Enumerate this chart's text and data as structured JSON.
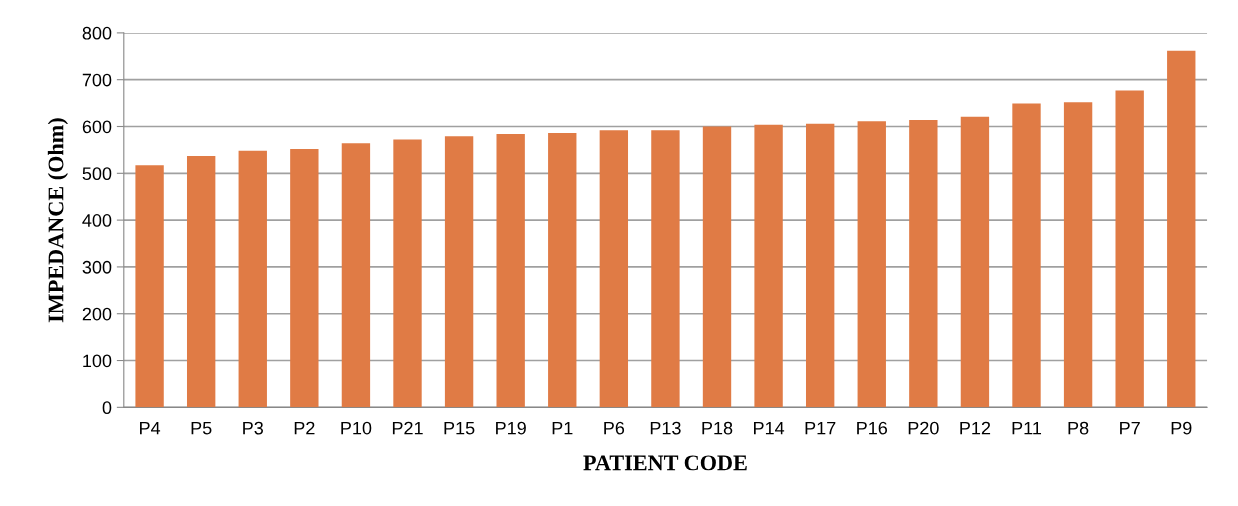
{
  "chart_data": {
    "type": "bar",
    "xlabel": "PATIENT CODE",
    "ylabel": "IMPEDANCE (Ohm)",
    "categories": [
      "P4",
      "P5",
      "P3",
      "P2",
      "P10",
      "P21",
      "P15",
      "P19",
      "P1",
      "P6",
      "P13",
      "P18",
      "P14",
      "P17",
      "P16",
      "P20",
      "P12",
      "P11",
      "P8",
      "P7",
      "P9"
    ],
    "values": [
      517,
      537,
      548,
      552,
      564,
      572,
      579,
      584,
      586,
      592,
      592,
      600,
      604,
      606,
      611,
      614,
      621,
      649,
      652,
      677,
      762
    ],
    "color": "#e07b45",
    "ylim": [
      0,
      800
    ],
    "yticks": [
      0,
      100,
      200,
      300,
      400,
      500,
      600,
      700,
      800
    ],
    "grid": "y"
  }
}
